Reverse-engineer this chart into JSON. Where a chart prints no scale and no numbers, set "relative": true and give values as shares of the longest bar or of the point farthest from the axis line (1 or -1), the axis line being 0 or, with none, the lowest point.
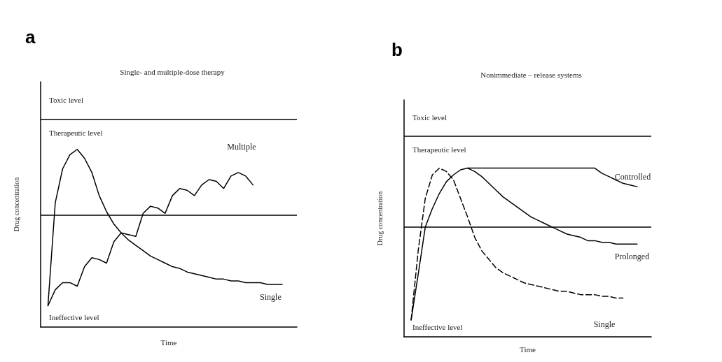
{
  "chart_data": [
    {
      "type": "line",
      "title": "Single- and multiple-dose therapy",
      "xlabel": "Time",
      "ylabel": "Drug concentration",
      "relative": true,
      "legend": false,
      "grid": false,
      "marker": "none",
      "line_style": "solid",
      "categories": [
        null,
        null,
        null,
        null,
        null,
        null,
        null,
        null,
        null,
        null,
        null,
        null,
        null,
        null,
        null,
        null,
        null,
        null,
        null,
        null,
        null,
        null,
        null,
        null,
        null,
        null,
        null,
        null,
        null,
        null,
        null,
        null,
        null,
        null,
        null,
        null
      ],
      "series": [
        {
          "name": "Multiple",
          "color": "#000000",
          "values": [
            null,
            0.12,
            0.21,
            0.25,
            0.25,
            0.23,
            0.34,
            0.39,
            0.38,
            0.36,
            0.48,
            0.53,
            0.52,
            0.51,
            0.64,
            0.68,
            0.67,
            0.64,
            0.74,
            0.78,
            0.77,
            0.74,
            0.8,
            0.83,
            0.82,
            0.78,
            0.85,
            0.87,
            0.85,
            0.8,
            null,
            null,
            null,
            null,
            null,
            null
          ]
        },
        {
          "name": "Single",
          "color": "#000000",
          "values": [
            null,
            0.12,
            0.7,
            0.89,
            0.97,
            1.0,
            0.95,
            0.87,
            0.74,
            0.65,
            0.58,
            0.53,
            0.49,
            0.46,
            0.43,
            0.4,
            0.38,
            0.36,
            0.34,
            0.33,
            0.31,
            0.3,
            0.29,
            0.28,
            0.27,
            0.27,
            0.26,
            0.26,
            0.25,
            0.25,
            0.25,
            0.24,
            0.24,
            0.24,
            null,
            null
          ]
        }
      ],
      "ref_lines": [
        {
          "axis": "y",
          "value": 1.17,
          "color": "#000000"
        },
        {
          "axis": "y",
          "value": 0.63,
          "color": "#000000"
        }
      ],
      "annotations": [
        "a",
        "Toxic level",
        "Therapeutic level",
        "Ineffective level"
      ]
    },
    {
      "type": "line",
      "title": "Nonimmediate – release systems",
      "xlabel": "Time",
      "ylabel": "Drug concentration",
      "relative": true,
      "legend": false,
      "grid": false,
      "marker": "none",
      "categories": [
        null,
        null,
        null,
        null,
        null,
        null,
        null,
        null,
        null,
        null,
        null,
        null,
        null,
        null,
        null,
        null,
        null,
        null,
        null,
        null,
        null,
        null,
        null,
        null,
        null,
        null,
        null,
        null,
        null,
        null,
        null,
        null,
        null,
        null,
        null,
        null
      ],
      "series": [
        {
          "name": "Controlled",
          "color": "#000000",
          "line_style": "solid",
          "values": [
            null,
            null,
            null,
            null,
            null,
            null,
            null,
            null,
            null,
            1.0,
            1.0,
            1.0,
            1.0,
            1.0,
            1.0,
            1.0,
            1.0,
            1.0,
            1.0,
            1.0,
            1.0,
            1.0,
            1.0,
            1.0,
            1.0,
            1.0,
            1.0,
            1.0,
            0.97,
            0.95,
            0.93,
            0.91,
            0.9,
            0.89,
            null,
            null
          ]
        },
        {
          "name": "Prolonged",
          "color": "#000000",
          "line_style": "solid",
          "values": [
            null,
            0.1,
            0.37,
            0.65,
            0.76,
            0.85,
            0.92,
            0.96,
            0.99,
            1.0,
            0.98,
            0.95,
            0.91,
            0.87,
            0.83,
            0.8,
            0.77,
            0.74,
            0.71,
            0.69,
            0.67,
            0.65,
            0.63,
            0.61,
            0.6,
            0.59,
            0.57,
            0.57,
            0.56,
            0.56,
            0.55,
            0.55,
            0.55,
            0.55,
            null,
            null
          ]
        },
        {
          "name": "Single",
          "color": "#000000",
          "line_style": "dashed",
          "values": [
            null,
            0.1,
            0.51,
            0.82,
            0.96,
            1.0,
            0.98,
            0.93,
            0.82,
            0.71,
            0.59,
            0.51,
            0.46,
            0.41,
            0.38,
            0.36,
            0.34,
            0.32,
            0.31,
            0.3,
            0.29,
            0.28,
            0.27,
            0.27,
            0.26,
            0.25,
            0.25,
            0.25,
            0.24,
            0.24,
            0.23,
            0.23,
            null,
            null,
            null,
            null
          ]
        }
      ],
      "ref_lines": [
        {
          "axis": "y",
          "value": 1.19,
          "color": "#000000"
        },
        {
          "axis": "y",
          "value": 0.65,
          "color": "#000000"
        }
      ],
      "annotations": [
        "b",
        "Toxic level",
        "Therapeutic level",
        "Ineffective level"
      ]
    }
  ]
}
